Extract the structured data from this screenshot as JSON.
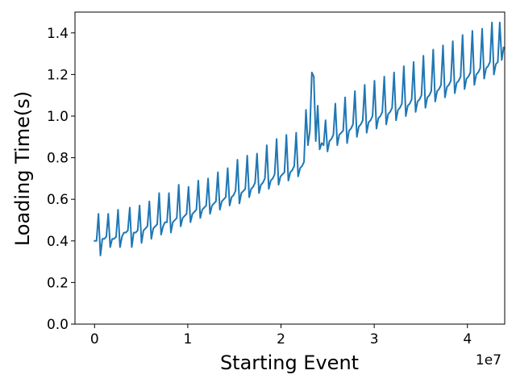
{
  "chart_data": {
    "type": "line",
    "title": "",
    "xlabel": "Starting Event",
    "ylabel": "Loading Time(s)",
    "x_offset_label": "1e7",
    "xlim": [
      -2100000,
      44000000
    ],
    "ylim": [
      0,
      1.5
    ],
    "xticks": [
      {
        "value": 0,
        "label": "0"
      },
      {
        "value": 10000000,
        "label": "1"
      },
      {
        "value": 20000000,
        "label": "2"
      },
      {
        "value": 30000000,
        "label": "3"
      },
      {
        "value": 40000000,
        "label": "4"
      }
    ],
    "yticks": [
      {
        "value": 0.0,
        "label": "0.0"
      },
      {
        "value": 0.2,
        "label": "0.2"
      },
      {
        "value": 0.4,
        "label": "0.4"
      },
      {
        "value": 0.6,
        "label": "0.6"
      },
      {
        "value": 0.8,
        "label": "0.8"
      },
      {
        "value": 1.0,
        "label": "1.0"
      },
      {
        "value": 1.2,
        "label": "1.2"
      },
      {
        "value": 1.4,
        "label": "1.4"
      }
    ],
    "grid": false,
    "series": [
      {
        "color": "#1f77b4",
        "x_start": 0,
        "x_step": 210000,
        "values": [
          0.4,
          0.4,
          0.53,
          0.33,
          0.41,
          0.41,
          0.42,
          0.53,
          0.37,
          0.41,
          0.41,
          0.42,
          0.55,
          0.37,
          0.42,
          0.44,
          0.44,
          0.45,
          0.56,
          0.37,
          0.44,
          0.44,
          0.45,
          0.57,
          0.39,
          0.45,
          0.46,
          0.47,
          0.59,
          0.41,
          0.46,
          0.47,
          0.48,
          0.63,
          0.43,
          0.47,
          0.49,
          0.49,
          0.63,
          0.44,
          0.49,
          0.5,
          0.51,
          0.67,
          0.47,
          0.51,
          0.52,
          0.53,
          0.66,
          0.49,
          0.53,
          0.54,
          0.55,
          0.69,
          0.51,
          0.55,
          0.56,
          0.57,
          0.7,
          0.53,
          0.57,
          0.58,
          0.59,
          0.73,
          0.55,
          0.59,
          0.6,
          0.61,
          0.75,
          0.57,
          0.61,
          0.62,
          0.64,
          0.79,
          0.58,
          0.63,
          0.64,
          0.65,
          0.81,
          0.61,
          0.65,
          0.66,
          0.68,
          0.82,
          0.63,
          0.67,
          0.68,
          0.7,
          0.86,
          0.65,
          0.69,
          0.7,
          0.72,
          0.89,
          0.67,
          0.71,
          0.72,
          0.73,
          0.91,
          0.69,
          0.73,
          0.74,
          0.76,
          0.92,
          0.71,
          0.75,
          0.76,
          0.78,
          1.03,
          0.86,
          0.93,
          1.21,
          1.19,
          0.88,
          1.05,
          0.84,
          0.87,
          0.86,
          0.98,
          0.83,
          0.88,
          0.89,
          0.91,
          1.06,
          0.86,
          0.91,
          0.92,
          0.93,
          1.09,
          0.87,
          0.93,
          0.94,
          0.96,
          1.12,
          0.9,
          0.95,
          0.96,
          0.98,
          1.15,
          0.92,
          0.97,
          0.98,
          1.0,
          1.17,
          0.94,
          0.99,
          1.0,
          1.02,
          1.19,
          0.96,
          1.01,
          1.02,
          1.04,
          1.21,
          0.98,
          1.03,
          1.04,
          1.06,
          1.24,
          1.0,
          1.05,
          1.06,
          1.08,
          1.26,
          1.02,
          1.07,
          1.08,
          1.1,
          1.29,
          1.04,
          1.09,
          1.1,
          1.12,
          1.32,
          1.07,
          1.12,
          1.13,
          1.15,
          1.34,
          1.09,
          1.14,
          1.15,
          1.17,
          1.36,
          1.11,
          1.16,
          1.17,
          1.19,
          1.39,
          1.13,
          1.18,
          1.19,
          1.21,
          1.41,
          1.15,
          1.2,
          1.21,
          1.23,
          1.42,
          1.18,
          1.23,
          1.24,
          1.26,
          1.45,
          1.2,
          1.25,
          1.26,
          1.45,
          1.27,
          1.33
        ]
      }
    ]
  }
}
